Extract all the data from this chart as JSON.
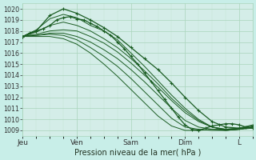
{
  "background_color": "#c8eee8",
  "plot_bg_color": "#d4ede8",
  "grid_color": "#aad4bb",
  "grid_minor_color": "#c4e4d0",
  "line_color": "#1a5c22",
  "title": "Pression niveau de la mer( hPa )",
  "ylim": [
    1008.5,
    1020.5
  ],
  "yticks": [
    1009,
    1010,
    1011,
    1012,
    1013,
    1014,
    1015,
    1016,
    1017,
    1018,
    1019,
    1020
  ],
  "xtick_labels": [
    "Jeu",
    "Ven",
    "Sam",
    "Dim",
    "L"
  ],
  "xtick_positions": [
    0,
    24,
    48,
    72,
    96
  ],
  "total_hours": 102,
  "series": [
    {
      "x": [
        0,
        3,
        6,
        9,
        12,
        15,
        18,
        21,
        24,
        27,
        30,
        33,
        36,
        39,
        42,
        45,
        48,
        51,
        54,
        57,
        60,
        63,
        66,
        69,
        72,
        75,
        78,
        81,
        84,
        87,
        90,
        93,
        96,
        99,
        102
      ],
      "y": [
        1017.5,
        1017.8,
        1018.0,
        1018.2,
        1018.5,
        1019.0,
        1019.2,
        1019.3,
        1019.1,
        1019.0,
        1018.7,
        1018.4,
        1018.0,
        1017.6,
        1017.0,
        1016.4,
        1015.7,
        1015.0,
        1014.2,
        1013.4,
        1012.6,
        1011.8,
        1011.0,
        1010.2,
        1009.5,
        1009.1,
        1009.0,
        1009.2,
        1009.4,
        1009.5,
        1009.6,
        1009.6,
        1009.5,
        1009.3,
        1009.2
      ],
      "marker": true,
      "lw": 0.9
    },
    {
      "x": [
        0,
        6,
        12,
        18,
        24,
        30,
        36,
        42,
        48,
        54,
        60,
        66,
        72,
        78,
        84,
        90,
        96,
        102
      ],
      "y": [
        1017.5,
        1018.1,
        1019.1,
        1019.5,
        1019.2,
        1018.5,
        1018.0,
        1017.2,
        1016.0,
        1014.8,
        1013.5,
        1012.2,
        1011.0,
        1010.0,
        1009.3,
        1009.1,
        1009.2,
        1009.5
      ],
      "marker": false,
      "lw": 0.7
    },
    {
      "x": [
        0,
        6,
        12,
        18,
        24,
        30,
        36,
        42,
        48,
        54,
        60,
        66,
        72,
        78,
        84,
        90,
        96,
        102
      ],
      "y": [
        1017.5,
        1018.0,
        1019.4,
        1020.0,
        1019.6,
        1019.0,
        1018.3,
        1017.5,
        1016.5,
        1015.5,
        1014.5,
        1013.3,
        1012.0,
        1010.8,
        1009.8,
        1009.3,
        1009.2,
        1009.4
      ],
      "marker": true,
      "lw": 0.9
    },
    {
      "x": [
        0,
        6,
        12,
        18,
        24,
        30,
        36,
        42,
        48,
        54,
        60,
        66,
        72,
        78,
        84,
        90,
        96,
        102
      ],
      "y": [
        1017.5,
        1017.9,
        1018.5,
        1018.8,
        1018.5,
        1018.0,
        1017.3,
        1016.5,
        1015.5,
        1014.4,
        1013.2,
        1011.9,
        1010.8,
        1009.9,
        1009.3,
        1009.0,
        1009.1,
        1009.3
      ],
      "marker": false,
      "lw": 0.7
    },
    {
      "x": [
        0,
        6,
        12,
        18,
        24,
        30,
        36,
        42,
        48,
        54,
        60,
        66,
        72,
        78,
        84,
        90,
        96,
        102
      ],
      "y": [
        1017.5,
        1017.7,
        1018.0,
        1018.1,
        1018.0,
        1017.5,
        1016.9,
        1016.1,
        1015.1,
        1014.0,
        1012.9,
        1011.7,
        1010.6,
        1009.8,
        1009.3,
        1009.1,
        1009.1,
        1009.3
      ],
      "marker": false,
      "lw": 0.7
    },
    {
      "x": [
        0,
        6,
        12,
        18,
        24,
        30,
        36,
        42,
        48,
        54,
        60,
        66,
        72,
        78,
        84,
        90,
        96,
        102
      ],
      "y": [
        1017.5,
        1017.6,
        1017.8,
        1017.8,
        1017.5,
        1017.0,
        1016.3,
        1015.5,
        1014.5,
        1013.4,
        1012.2,
        1011.0,
        1009.9,
        1009.3,
        1009.1,
        1009.0,
        1009.1,
        1009.3
      ],
      "marker": false,
      "lw": 0.7
    },
    {
      "x": [
        0,
        6,
        12,
        18,
        24,
        30,
        36,
        42,
        48,
        54,
        60,
        66,
        72,
        78,
        84,
        90,
        96,
        102
      ],
      "y": [
        1017.5,
        1017.6,
        1017.7,
        1017.6,
        1017.2,
        1016.5,
        1015.7,
        1014.8,
        1013.7,
        1012.5,
        1011.3,
        1010.1,
        1009.3,
        1009.1,
        1009.0,
        1009.0,
        1009.1,
        1009.2
      ],
      "marker": false,
      "lw": 0.7
    },
    {
      "x": [
        0,
        6,
        12,
        18,
        24,
        30,
        36,
        42,
        48,
        54,
        60,
        66,
        72,
        78,
        84,
        90,
        96,
        102
      ],
      "y": [
        1017.5,
        1017.5,
        1017.5,
        1017.3,
        1016.8,
        1016.0,
        1015.0,
        1013.9,
        1012.7,
        1011.5,
        1010.3,
        1009.4,
        1009.0,
        1009.0,
        1009.1,
        1009.1,
        1009.2,
        1009.3
      ],
      "marker": false,
      "lw": 0.7
    }
  ]
}
